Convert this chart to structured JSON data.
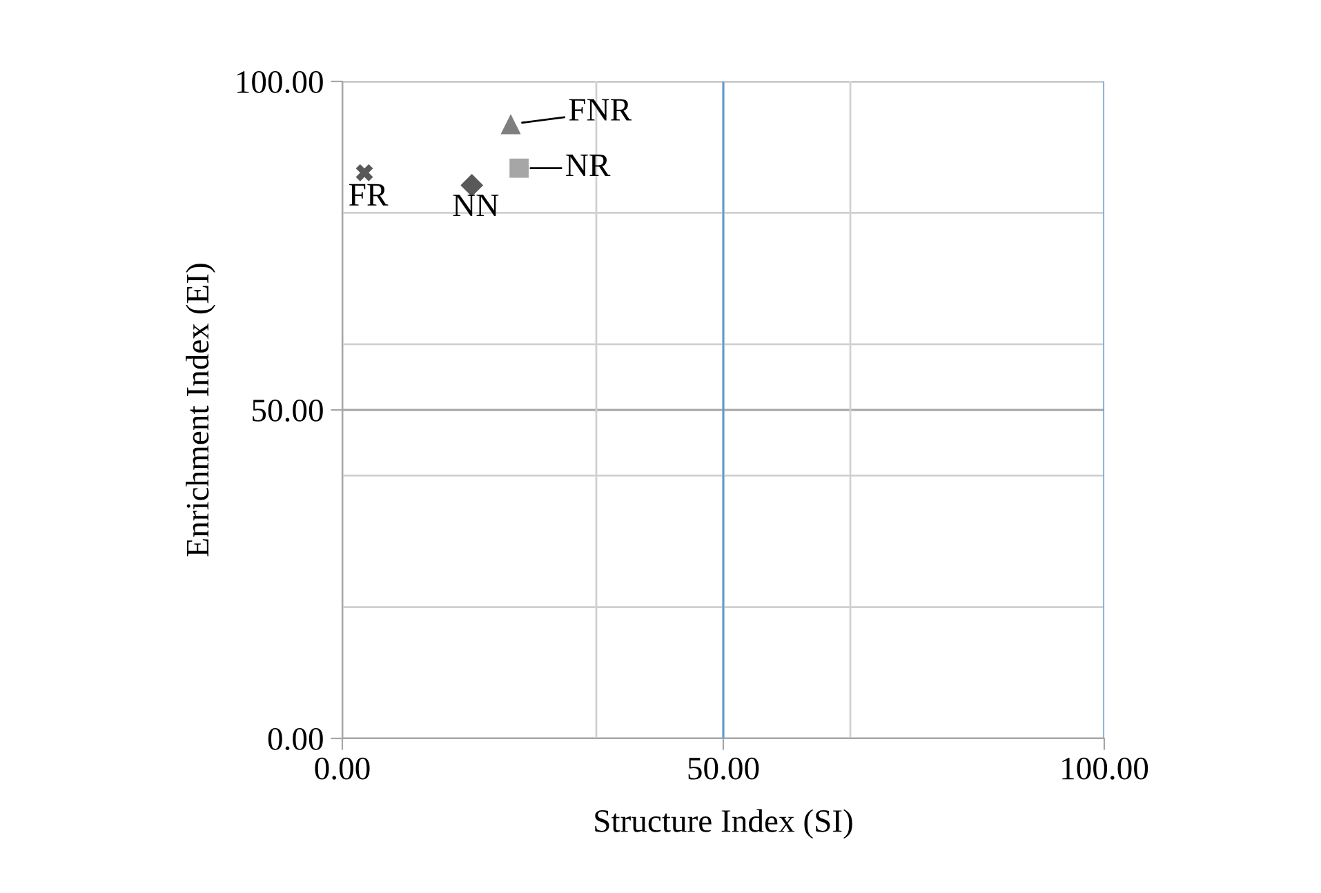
{
  "chart_data": {
    "type": "scatter",
    "xlabel": "Structure Index (SI)",
    "ylabel": "Enrichment Index (EI)",
    "series": [
      {
        "name": "FR",
        "marker": "cross",
        "color": "#595959",
        "x": [
          2.9
        ],
        "values": [
          86.1
        ]
      },
      {
        "name": "NN",
        "marker": "diamond",
        "color": "#595959",
        "x": [
          17.0
        ],
        "values": [
          84.2
        ]
      },
      {
        "name": "FNR",
        "marker": "triangle",
        "color": "#7f7f7f",
        "x": [
          22.1
        ],
        "values": [
          93.5
        ]
      },
      {
        "name": "NR",
        "marker": "square",
        "color": "#a6a6a6",
        "x": [
          23.2
        ],
        "values": [
          86.8
        ]
      }
    ],
    "xlim": [
      0,
      100
    ],
    "ylim": [
      0,
      100
    ],
    "xticks": [
      {
        "value": 0,
        "label": "0.00"
      },
      {
        "value": 50,
        "label": "50.00"
      },
      {
        "value": 100,
        "label": "100.00"
      }
    ],
    "yticks": [
      {
        "value": 0,
        "label": "0.00"
      },
      {
        "value": 50,
        "label": "50.00"
      },
      {
        "value": 100,
        "label": "100.00"
      }
    ],
    "grid": true,
    "ref_lines": [
      {
        "axis": "x",
        "value": 33.33,
        "color": "#d0d0d0"
      },
      {
        "axis": "x",
        "value": 66.67,
        "color": "#d0d0d0"
      },
      {
        "axis": "y",
        "value": 20,
        "color": "#d0d0d0"
      },
      {
        "axis": "y",
        "value": 40,
        "color": "#d0d0d0"
      },
      {
        "axis": "y",
        "value": 60,
        "color": "#d0d0d0"
      },
      {
        "axis": "y",
        "value": 80,
        "color": "#d0d0d0"
      },
      {
        "axis": "x",
        "value": 50,
        "color": "#5b9bd5"
      },
      {
        "axis": "x",
        "value": 100,
        "color": "#5b9bd5"
      }
    ]
  }
}
